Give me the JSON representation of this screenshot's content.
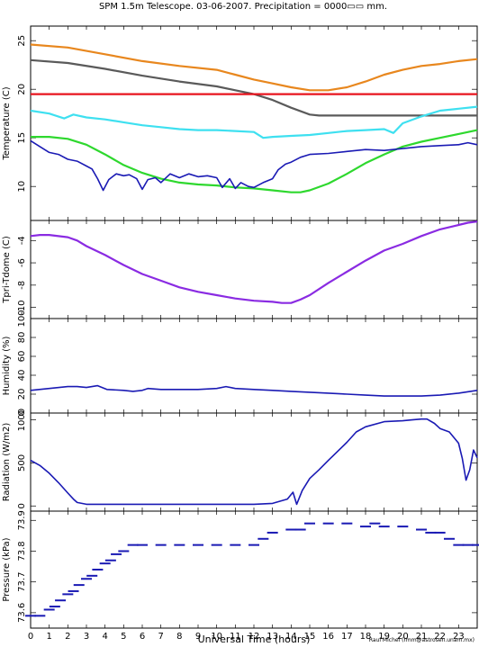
{
  "title": "SPM 1.5m Telescope. 03-06-2007. Precipitation = 0000▭▭ mm.",
  "xlabel": "Universal Time (hours)",
  "credit": "Raul Michel (rmm@astrosen.unam.mx)",
  "colors": {
    "orange": "#e8871e",
    "gray": "#5a5a5a",
    "red": "#e8141e",
    "cyan": "#3ee0f0",
    "green": "#2ed82e",
    "blue": "#1a1ab4",
    "purple": "#8a2be2"
  },
  "chart_data": [
    {
      "type": "line",
      "panel": "temperature",
      "ylabel": "Temperature (C)",
      "ylim": [
        6.5,
        26.5
      ],
      "yticks": [
        10,
        15,
        20,
        25
      ],
      "xlim": [
        0,
        24
      ],
      "series": [
        {
          "color": "orange",
          "x": [
            0,
            2,
            4,
            6,
            8,
            10,
            11,
            12,
            13,
            14,
            15,
            16,
            17,
            18,
            19,
            20,
            21,
            22,
            23,
            24
          ],
          "y": [
            24.6,
            24.3,
            23.6,
            22.9,
            22.4,
            22.0,
            21.5,
            21.0,
            20.6,
            20.2,
            19.9,
            19.9,
            20.2,
            20.8,
            21.5,
            22.0,
            22.4,
            22.6,
            22.9,
            23.1
          ]
        },
        {
          "color": "gray",
          "x": [
            0,
            2,
            4,
            6,
            8,
            10,
            11,
            12,
            13,
            14,
            15,
            15.5,
            16,
            17,
            18,
            20,
            22,
            24
          ],
          "y": [
            23.0,
            22.7,
            22.1,
            21.4,
            20.8,
            20.3,
            19.9,
            19.5,
            18.9,
            18.1,
            17.4,
            17.3,
            17.3,
            17.3,
            17.3,
            17.3,
            17.3,
            17.3
          ]
        },
        {
          "color": "red",
          "x": [
            0,
            24
          ],
          "y": [
            19.5,
            19.5
          ]
        },
        {
          "color": "cyan",
          "x": [
            0,
            1,
            1.8,
            2.3,
            3,
            4,
            5,
            6,
            7,
            8,
            9,
            10,
            11,
            12,
            12.5,
            13,
            14,
            15,
            16,
            17,
            18,
            19,
            19.5,
            20,
            21,
            22,
            23,
            24
          ],
          "y": [
            17.8,
            17.5,
            17.0,
            17.4,
            17.1,
            16.9,
            16.6,
            16.3,
            16.1,
            15.9,
            15.8,
            15.8,
            15.7,
            15.6,
            15.0,
            15.1,
            15.2,
            15.3,
            15.5,
            15.7,
            15.8,
            15.9,
            15.5,
            16.5,
            17.2,
            17.8,
            18.0,
            18.2
          ]
        },
        {
          "color": "green",
          "x": [
            0,
            1,
            2,
            3,
            4,
            5,
            6,
            7,
            8,
            9,
            10,
            11,
            12,
            13,
            14,
            14.5,
            15,
            16,
            17,
            18,
            19,
            20,
            21,
            22,
            23,
            24
          ],
          "y": [
            15.1,
            15.1,
            14.9,
            14.3,
            13.3,
            12.2,
            11.4,
            10.8,
            10.4,
            10.2,
            10.1,
            9.9,
            9.8,
            9.6,
            9.4,
            9.4,
            9.6,
            10.3,
            11.3,
            12.4,
            13.3,
            14.1,
            14.6,
            15.0,
            15.4,
            15.8
          ]
        },
        {
          "color": "blue",
          "x": [
            0,
            0.5,
            1,
            1.5,
            2,
            2.5,
            3,
            3.3,
            3.6,
            3.9,
            4.2,
            4.6,
            5,
            5.3,
            5.7,
            6,
            6.3,
            6.7,
            7,
            7.5,
            8,
            8.5,
            9,
            9.5,
            10,
            10.3,
            10.7,
            11,
            11.3,
            11.7,
            12,
            12.5,
            13,
            13.3,
            13.7,
            14,
            14.5,
            15,
            16,
            17,
            18,
            19,
            20,
            21,
            22,
            23,
            23.5,
            24
          ],
          "y": [
            14.7,
            14.1,
            13.5,
            13.3,
            12.8,
            12.6,
            12.1,
            11.8,
            10.8,
            9.6,
            10.7,
            11.3,
            11.1,
            11.2,
            10.8,
            9.7,
            10.7,
            10.9,
            10.4,
            11.3,
            10.9,
            11.3,
            11.0,
            11.1,
            10.9,
            9.9,
            10.8,
            9.8,
            10.4,
            10.0,
            9.9,
            10.4,
            10.8,
            11.7,
            12.3,
            12.5,
            13.0,
            13.3,
            13.4,
            13.6,
            13.8,
            13.7,
            13.9,
            14.1,
            14.2,
            14.3,
            14.5,
            14.3
          ]
        }
      ]
    },
    {
      "type": "line",
      "panel": "tpri_tdome",
      "ylabel": "Tpri-Tdome (C)",
      "ylim": [
        -11,
        -2.2
      ],
      "yticks": [
        -10,
        -8,
        -6,
        -4
      ],
      "xlim": [
        0,
        24
      ],
      "series": [
        {
          "color": "purple",
          "x": [
            0,
            0.5,
            1,
            2,
            2.5,
            3,
            4,
            5,
            6,
            7,
            8,
            9,
            10,
            11,
            12,
            13,
            13.5,
            14,
            14.5,
            15,
            16,
            17,
            18,
            19,
            20,
            21,
            22,
            23,
            23.5,
            24
          ],
          "y": [
            -3.6,
            -3.5,
            -3.5,
            -3.7,
            -4.0,
            -4.5,
            -5.3,
            -6.2,
            -7.0,
            -7.6,
            -8.2,
            -8.6,
            -8.9,
            -9.2,
            -9.4,
            -9.5,
            -9.6,
            -9.6,
            -9.3,
            -8.9,
            -7.8,
            -6.8,
            -5.8,
            -4.9,
            -4.3,
            -3.6,
            -3.0,
            -2.6,
            -2.4,
            -2.3
          ]
        }
      ]
    },
    {
      "type": "line",
      "panel": "humidity",
      "ylabel": "Humidity (%)",
      "ylim": [
        0,
        100
      ],
      "yticks": [
        0,
        20,
        40,
        60,
        80,
        100
      ],
      "xlim": [
        0,
        24
      ],
      "series": [
        {
          "color": "blue",
          "x": [
            0,
            1,
            2,
            2.5,
            3,
            3.6,
            4.1,
            5,
            5.5,
            6,
            6.3,
            7,
            8,
            9,
            10,
            10.5,
            11,
            12,
            13,
            14,
            15,
            16,
            17,
            18,
            19,
            20,
            21,
            22,
            23,
            24
          ],
          "y": [
            24,
            26,
            28,
            28,
            27,
            29,
            25,
            24,
            23,
            24,
            26,
            25,
            25,
            25,
            26,
            28,
            26,
            25,
            24,
            23,
            22,
            21,
            20,
            19,
            18,
            18,
            18,
            19,
            21,
            24
          ]
        }
      ]
    },
    {
      "type": "line",
      "panel": "radiation",
      "ylabel": "Radiation (W/m2)",
      "ylim": [
        -60,
        1080
      ],
      "yticks": [
        0,
        500,
        1000
      ],
      "xlim": [
        0,
        24
      ],
      "series": [
        {
          "color": "blue",
          "x": [
            0,
            0.5,
            1,
            1.5,
            2,
            2.3,
            2.5,
            3,
            4,
            6,
            8,
            10,
            12,
            13,
            13.8,
            14.1,
            14.3,
            14.6,
            15,
            15.5,
            16,
            17,
            17.5,
            18,
            19,
            20,
            20.5,
            21,
            21.3,
            21.7,
            22,
            22.5,
            23,
            23.2,
            23.4,
            23.6,
            23.8,
            24
          ],
          "y": [
            530,
            470,
            380,
            270,
            150,
            80,
            40,
            20,
            20,
            20,
            20,
            20,
            20,
            30,
            80,
            160,
            20,
            180,
            320,
            420,
            530,
            740,
            860,
            920,
            980,
            990,
            1000,
            1010,
            1010,
            960,
            900,
            860,
            730,
            550,
            300,
            420,
            650,
            560
          ]
        }
      ]
    },
    {
      "type": "scatter",
      "panel": "pressure",
      "ylabel": "Pressure (kPa)",
      "ylim": [
        73.55,
        73.93
      ],
      "yticks": [
        73.6,
        73.7,
        73.8,
        73.9
      ],
      "xlim": [
        0,
        24
      ],
      "xticks": [
        0,
        1,
        2,
        3,
        4,
        5,
        6,
        7,
        8,
        9,
        10,
        11,
        12,
        13,
        14,
        15,
        16,
        17,
        18,
        19,
        20,
        21,
        22,
        23
      ],
      "series": [
        {
          "color": "blue",
          "x": [
            0,
            0.5,
            1,
            1.3,
            1.6,
            2,
            2.3,
            2.6,
            3,
            3.3,
            3.6,
            4,
            4.3,
            4.6,
            5,
            5.5,
            6,
            7,
            8,
            9,
            10,
            11,
            12,
            12.5,
            13,
            14,
            14.5,
            15,
            16,
            17,
            18,
            18.5,
            19,
            20,
            21,
            21.5,
            22,
            22.5,
            23,
            23.5,
            24
          ],
          "y": [
            73.59,
            73.59,
            73.61,
            73.62,
            73.64,
            73.66,
            73.67,
            73.69,
            73.71,
            73.72,
            73.74,
            73.76,
            73.77,
            73.79,
            73.8,
            73.82,
            73.82,
            73.82,
            73.82,
            73.82,
            73.82,
            73.82,
            73.82,
            73.84,
            73.86,
            73.87,
            73.87,
            73.89,
            73.89,
            73.89,
            73.88,
            73.89,
            73.88,
            73.88,
            73.87,
            73.86,
            73.86,
            73.84,
            73.82,
            73.82,
            73.82
          ]
        }
      ]
    }
  ]
}
